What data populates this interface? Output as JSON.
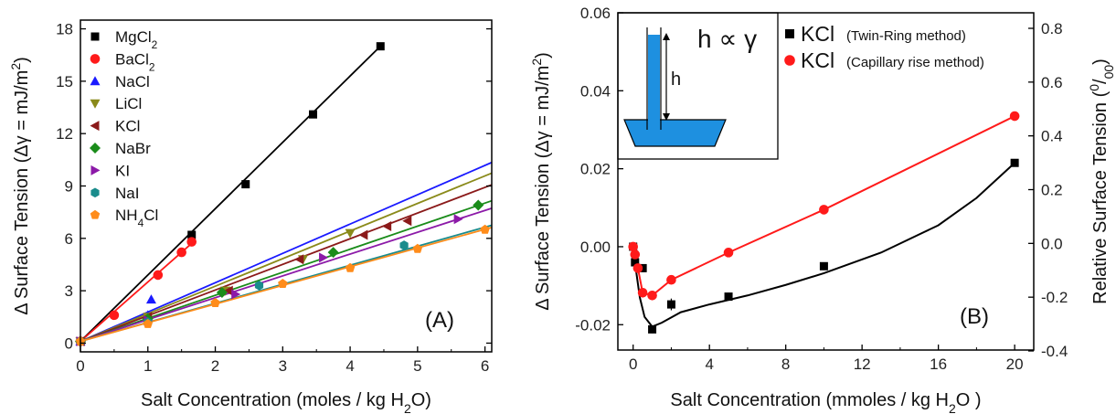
{
  "chart_data": [
    {
      "panel_label": "(A)",
      "type": "scatter",
      "xlabel": "Salt Concentration (moles / kg H",
      "xlabel_sub": "2",
      "xlabel_end": "O)",
      "ylabel": "Δ Surface Tension (Δγ = mJ/m",
      "ylabel_sup": "2",
      "ylabel_end": ")",
      "xlim": [
        0,
        6.1
      ],
      "ylim": [
        -0.5,
        18.5
      ],
      "xticks": [
        0,
        1,
        2,
        3,
        4,
        5,
        6
      ],
      "yticks": [
        0,
        3,
        6,
        9,
        12,
        15,
        18
      ],
      "legend_position": "top-left",
      "series": [
        {
          "name": "MgCl",
          "name_sub": "2",
          "color": "#000000",
          "marker": "square",
          "x": [
            0,
            1.65,
            2.45,
            3.45,
            4.45
          ],
          "y": [
            0.1,
            6.2,
            9.1,
            13.1,
            17.0
          ],
          "fit_slope": 3.8
        },
        {
          "name": "BaCl",
          "name_sub": "2",
          "color": "#ff1a1a",
          "marker": "circle",
          "x": [
            0,
            0.5,
            1.15,
            1.5,
            1.65
          ],
          "y": [
            0.1,
            1.6,
            3.9,
            5.2,
            5.8
          ],
          "fit_slope": 3.4
        },
        {
          "name": "NaCl",
          "color": "#1a1aff",
          "marker": "triangle-up",
          "x": [
            0,
            1.0,
            1.05,
            1.05,
            1.05,
            1.05,
            1.05,
            1.05,
            1.05,
            1.05,
            1.05,
            1.05,
            1.05,
            1.05,
            1.05,
            1.05,
            1.05,
            1.05,
            1.05,
            1.05,
            1.05,
            1.05,
            1.05,
            1.05,
            1.05,
            1.05,
            1.05,
            1.05,
            1.05,
            1.05,
            1.05,
            1.05,
            1.05,
            1.05,
            1.05,
            1.05,
            1.05,
            1.05,
            1.05,
            1.05,
            1.05,
            1.05,
            1.05,
            1.05,
            1.05,
            1.05,
            1.05,
            1.05,
            1.05,
            1.05,
            1.05,
            1.05,
            1.05,
            1.05,
            1.05,
            1.05,
            1.05,
            1.05,
            1.05,
            1.05,
            1.05,
            1.05,
            1.05,
            1.05,
            1.05,
            1.05,
            1.05,
            1.05,
            1.05,
            1.05,
            1.05,
            1.05,
            1.05,
            1.05,
            1.05,
            1.05,
            1.05,
            1.05,
            1.05,
            1.05,
            1.05,
            1.05,
            1.05,
            1.05,
            1.05,
            1.05,
            1.05,
            1.05,
            1.05,
            1.05,
            1.05,
            1.05,
            1.05,
            1.05,
            1.05,
            1.05,
            1.05,
            1.05,
            1.05
          ],
          "y": [
            0.1,
            1.6,
            2.5,
            2.5,
            2.5,
            2.5,
            2.5,
            2.5,
            2.5,
            2.5,
            2.5,
            2.5,
            2.5,
            2.5,
            2.5,
            2.5,
            2.5,
            2.5,
            2.5,
            2.5,
            2.5,
            2.5,
            2.5,
            2.5,
            2.5,
            2.5,
            2.5,
            2.5,
            2.5,
            2.5,
            2.5,
            2.5,
            2.5,
            2.5,
            2.5,
            2.5,
            2.5,
            2.5,
            2.5,
            2.5,
            2.5,
            2.5,
            2.5,
            2.5,
            2.5,
            2.5,
            2.5,
            2.5,
            2.5,
            2.5,
            2.5,
            2.5,
            2.5,
            2.5,
            2.5,
            2.5,
            2.5,
            2.5,
            2.5,
            2.5,
            2.5,
            2.5,
            2.5,
            2.5,
            2.5,
            2.5,
            2.5,
            2.5,
            2.5,
            2.5,
            2.5,
            2.5,
            2.5,
            2.5,
            2.5,
            2.5,
            2.5,
            2.5,
            2.5,
            2.5,
            2.5,
            2.5,
            2.5,
            2.5,
            2.5,
            2.5,
            2.5,
            2.5,
            2.5,
            2.5,
            2.5,
            2.5,
            2.5,
            2.5,
            2.5,
            2.5,
            2.5,
            2.5,
            2.5
          ],
          "fit_slope": 1.68
        },
        {
          "name": "LiCl",
          "color": "#8a8a1a",
          "marker": "triangle-down",
          "x": [
            0,
            1.0,
            2.15,
            3.3,
            4.0
          ],
          "y": [
            0.1,
            1.5,
            3.0,
            4.8,
            6.3
          ],
          "fit_slope": 1.58
        },
        {
          "name": "KCl",
          "color": "#8b1a1a",
          "marker": "triangle-left",
          "x": [
            0,
            1.0,
            2.2,
            3.25,
            4.2,
            4.55,
            4.85
          ],
          "y": [
            0.1,
            1.5,
            3.0,
            4.8,
            6.2,
            6.7,
            7.0
          ],
          "fit_slope": 1.47
        },
        {
          "name": "NaBr",
          "color": "#1a8c1a",
          "marker": "diamond",
          "x": [
            0,
            1.0,
            2.1,
            3.75,
            5.9
          ],
          "y": [
            0.1,
            1.4,
            2.9,
            5.2,
            7.9
          ],
          "fit_slope": 1.32
        },
        {
          "name": "KI",
          "color": "#8c1aa8",
          "marker": "triangle-right",
          "x": [
            0,
            1.0,
            2.3,
            3.6,
            5.6
          ],
          "y": [
            0.1,
            1.3,
            2.8,
            4.9,
            7.1
          ],
          "fit_slope": 1.25
        },
        {
          "name": "NaI",
          "color": "#1a8c8c",
          "marker": "hexagon",
          "x": [
            0,
            1.0,
            2.65,
            4.8
          ],
          "y": [
            0.1,
            1.2,
            3.3,
            5.6
          ],
          "fit_slope": 1.09
        },
        {
          "name": "NH",
          "name_sub": "4",
          "name_end": "Cl",
          "color": "#ff8c1a",
          "marker": "pentagon",
          "x": [
            0,
            1.0,
            2.0,
            3.0,
            4.0,
            5.0,
            6.0
          ],
          "y": [
            0.1,
            1.1,
            2.3,
            3.4,
            4.3,
            5.4,
            6.5
          ],
          "fit_slope": 1.07
        }
      ]
    },
    {
      "panel_label": "(B)",
      "type": "scatter",
      "xlabel": "Salt Concentration (mmoles / kg H",
      "xlabel_sub": "2",
      "xlabel_end": "O )",
      "ylabel": "Δ Surface Tension (Δγ = mJ/m",
      "ylabel_sup": "2",
      "ylabel_end": ")",
      "ylabel_right": "Relative Surface Tension (",
      "ylabel_right_sup": "0",
      "ylabel_right_sub": "00",
      "ylabel_right_end": ")",
      "xlim": [
        -0.8,
        21
      ],
      "ylim": [
        -0.0265,
        0.06
      ],
      "xticks": [
        0,
        4,
        8,
        12,
        16,
        20
      ],
      "yticks": [
        -0.02,
        0.0,
        0.02,
        0.04,
        0.06
      ],
      "ytick_labels": [
        "-0.02",
        "0.00",
        "0.02",
        "0.04",
        "0.06"
      ],
      "yticks_right": [
        -0.4,
        -0.2,
        0.0,
        0.2,
        0.4,
        0.6,
        0.8
      ],
      "ytick_labels_right": [
        "-0.4",
        "-0.2",
        "0.0",
        "0.2",
        "0.4",
        "0.6",
        "0.8"
      ],
      "legend_position": "top-right",
      "inset_label": "h",
      "inset_formula": "h ∝ γ",
      "series": [
        {
          "name": "KCl",
          "note": "(Twin-Ring method)",
          "color": "#000000",
          "marker": "square",
          "x": [
            0,
            0.1,
            0.5,
            1.0,
            2.0,
            5.0,
            10.0,
            20.0
          ],
          "y": [
            0.0,
            -0.004,
            -0.0055,
            -0.0212,
            -0.0148,
            -0.0128,
            -0.005,
            0.0215
          ],
          "yerr": [
            0,
            0.001,
            0.001,
            0.001,
            0.0015,
            0.001,
            0.001,
            0.001
          ]
        },
        {
          "name": "KCl",
          "note": "(Capillary rise method)",
          "color": "#ff1a1a",
          "marker": "circle",
          "x": [
            0,
            0.1,
            0.25,
            0.5,
            1.0,
            2.0,
            5.0,
            10.0,
            20.0
          ],
          "y": [
            0.0,
            -0.002,
            -0.0055,
            -0.0118,
            -0.0125,
            -0.0085,
            -0.0015,
            0.0095,
            0.0335
          ]
        }
      ]
    }
  ]
}
